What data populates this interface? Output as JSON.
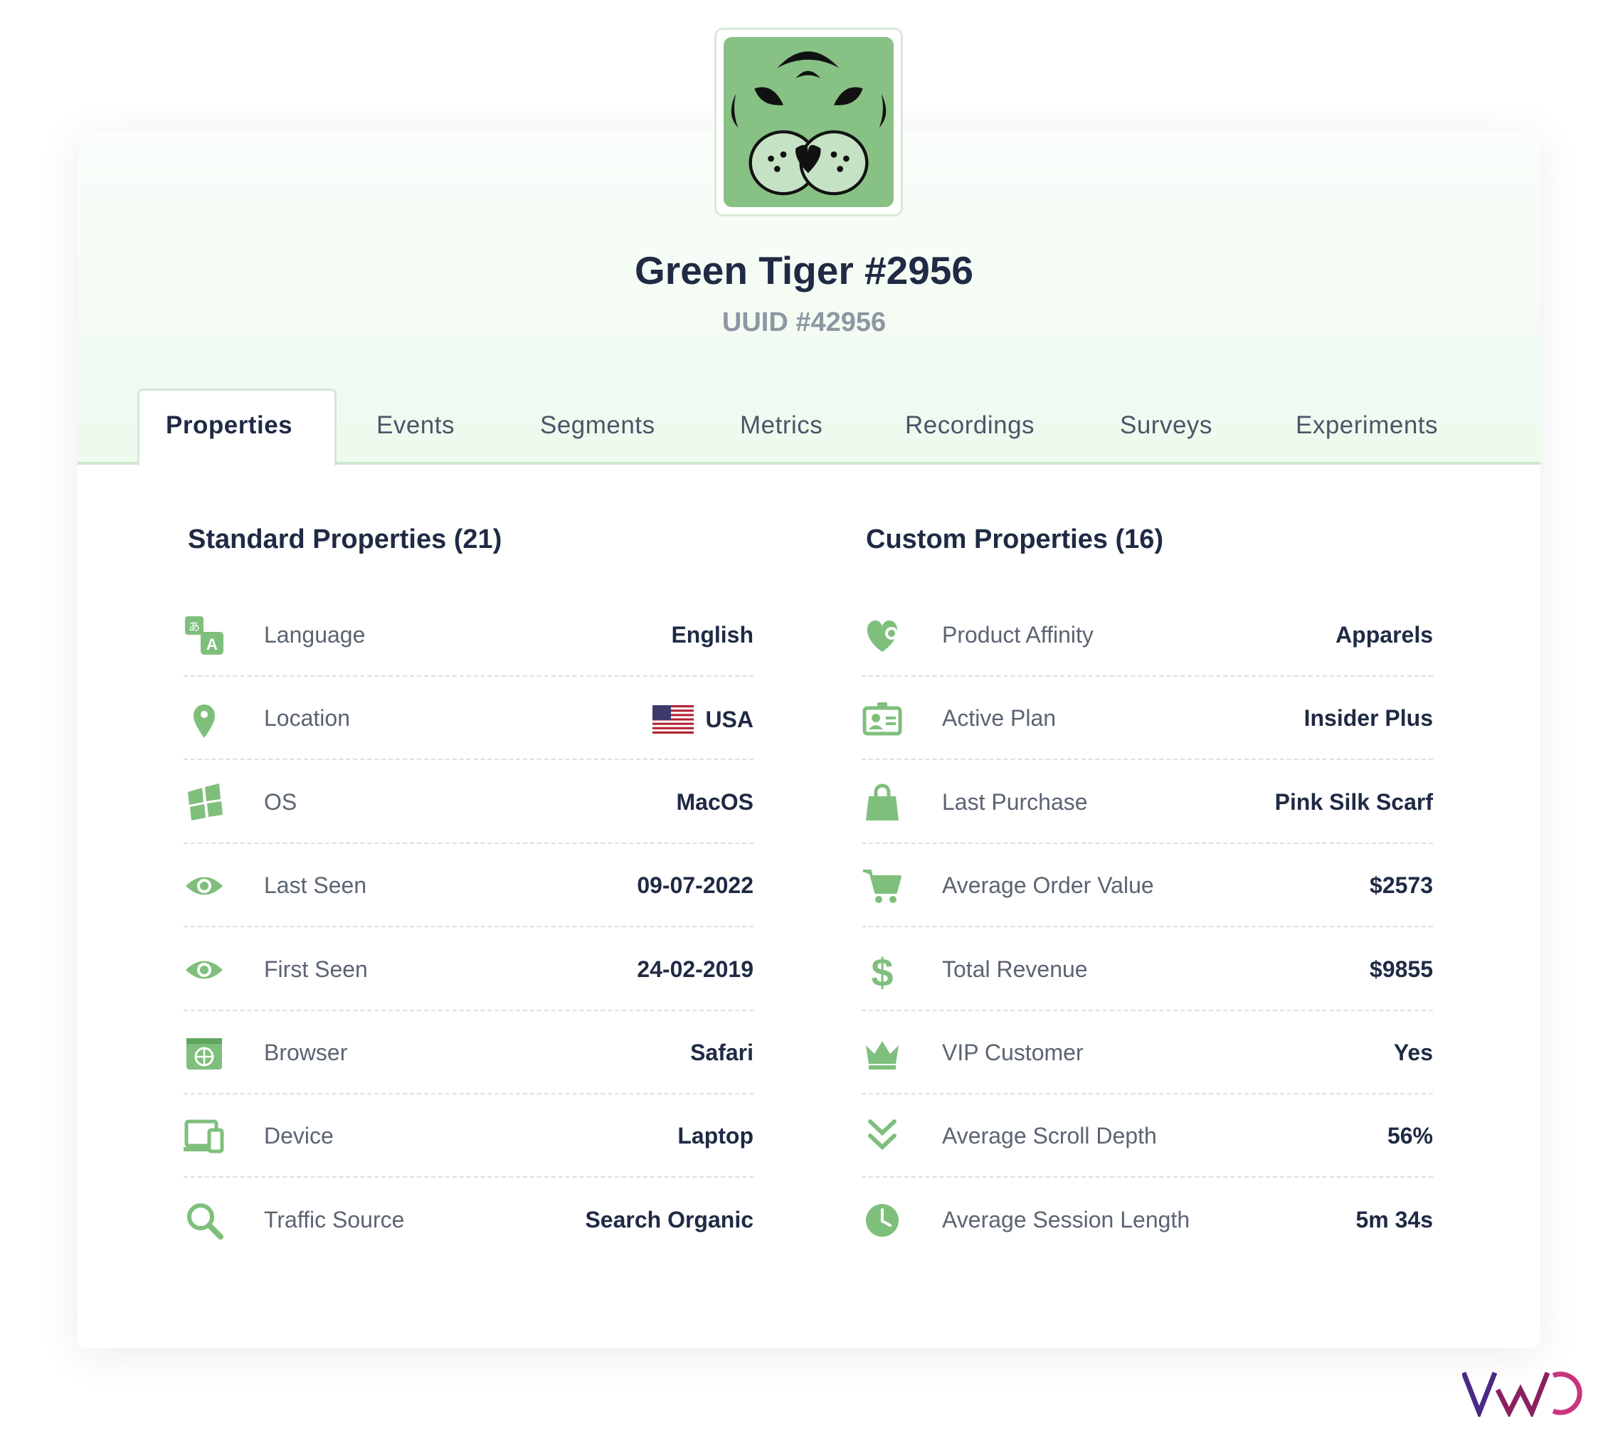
{
  "profile": {
    "name": "Green Tiger #2956",
    "uuid": "UUID #42956",
    "avatar_icon": "tiger-face-icon",
    "accent": "#88c184"
  },
  "tabs": [
    {
      "label": "Properties",
      "active": true
    },
    {
      "label": "Events"
    },
    {
      "label": "Segments"
    },
    {
      "label": "Metrics"
    },
    {
      "label": "Recordings"
    },
    {
      "label": "Surveys"
    },
    {
      "label": "Experiments"
    }
  ],
  "standard": {
    "title": "Standard Properties (21)",
    "rows": [
      {
        "icon": "language-icon",
        "label": "Language",
        "value": "English"
      },
      {
        "icon": "location-pin-icon",
        "label": "Location",
        "value": "USA",
        "flag": "us-flag-icon"
      },
      {
        "icon": "os-windows-icon",
        "label": "OS",
        "value": "MacOS"
      },
      {
        "icon": "eye-icon",
        "label": "Last Seen",
        "value": "09-07-2022"
      },
      {
        "icon": "eye-icon",
        "label": "First Seen",
        "value": "24-02-2019"
      },
      {
        "icon": "browser-globe-icon",
        "label": "Browser",
        "value": "Safari"
      },
      {
        "icon": "device-icon",
        "label": "Device",
        "value": "Laptop"
      },
      {
        "icon": "search-icon",
        "label": "Traffic Source",
        "value": "Search Organic"
      }
    ]
  },
  "custom": {
    "title": "Custom Properties (16)",
    "rows": [
      {
        "icon": "heart-icon",
        "label": "Product Affinity",
        "value": "Apparels"
      },
      {
        "icon": "id-card-icon",
        "label": "Active Plan",
        "value": "Insider Plus"
      },
      {
        "icon": "shopping-bag-icon",
        "label": "Last Purchase",
        "value": "Pink Silk Scarf"
      },
      {
        "icon": "cart-icon",
        "label": "Average Order Value",
        "value": "$2573"
      },
      {
        "icon": "dollar-icon",
        "label": "Total Revenue",
        "value": "$9855"
      },
      {
        "icon": "crown-icon",
        "label": "VIP Customer",
        "value": "Yes"
      },
      {
        "icon": "chevrons-down-icon",
        "label": "Average Scroll Depth",
        "value": "56%"
      },
      {
        "icon": "clock-icon",
        "label": "Average Session Length",
        "value": "5m 34s"
      }
    ]
  },
  "brand": {
    "logo": "VWO",
    "colors": [
      "#4b2a86",
      "#8a2060",
      "#c8357e"
    ]
  }
}
